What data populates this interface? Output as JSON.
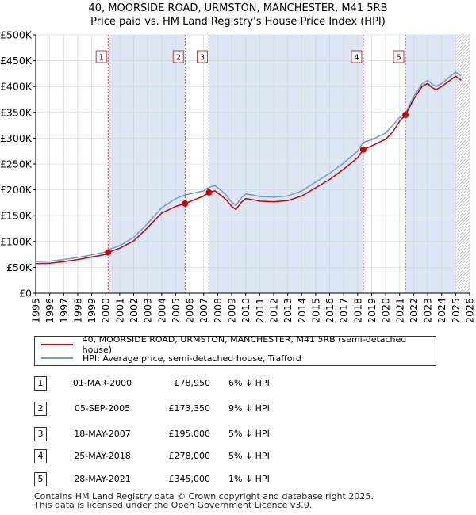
{
  "title": [
    "40, MOORSIDE ROAD, URMSTON, MANCHESTER, M41 5RB",
    "Price paid vs. HM Land Registry's House Price Index (HPI)"
  ],
  "colors": {
    "property": "#cc0000",
    "hpi": "#6b9cd6",
    "shade": "#dde6f5",
    "vline": "#dd4444",
    "grid": "#d8d8d8"
  },
  "legend": {
    "property_label": "40, MOORSIDE ROAD, URMSTON, MANCHESTER, M41 5RB (semi-detached house)",
    "hpi_label": "HPI: Average price, semi-detached house, Trafford"
  },
  "transactions": [
    {
      "num": "1",
      "date": "01-MAR-2000",
      "price": "£78,950",
      "hpi": "6% ↓ HPI"
    },
    {
      "num": "2",
      "date": "05-SEP-2005",
      "price": "£173,350",
      "hpi": "9% ↓ HPI"
    },
    {
      "num": "3",
      "date": "18-MAY-2007",
      "price": "£195,000",
      "hpi": "5% ↓ HPI"
    },
    {
      "num": "4",
      "date": "25-MAY-2018",
      "price": "£278,000",
      "hpi": "5% ↓ HPI"
    },
    {
      "num": "5",
      "date": "28-MAY-2021",
      "price": "£345,000",
      "hpi": "1% ↓ HPI"
    }
  ],
  "footer": [
    "Contains HM Land Registry data © Crown copyright and database right 2025.",
    "This data is licensed under the Open Government Licence v3.0."
  ],
  "chart_data": {
    "type": "line",
    "title": "Price paid vs. HM Land Registry's House Price Index (HPI)",
    "xlabel": "",
    "ylabel": "",
    "xlim": [
      1995,
      2026
    ],
    "ylim": [
      0,
      500000
    ],
    "x_ticks": [
      "1995",
      "1996",
      "1997",
      "1998",
      "1999",
      "2000",
      "2001",
      "2002",
      "2003",
      "2004",
      "2005",
      "2006",
      "2007",
      "2008",
      "2009",
      "2010",
      "2011",
      "2012",
      "2013",
      "2014",
      "2015",
      "2016",
      "2017",
      "2018",
      "2019",
      "2020",
      "2021",
      "2022",
      "2023",
      "2024",
      "2025",
      "2026"
    ],
    "y_ticks": [
      {
        "value": 0,
        "label": "£0"
      },
      {
        "value": 50000,
        "label": "£50K"
      },
      {
        "value": 100000,
        "label": "£100K"
      },
      {
        "value": 150000,
        "label": "£150K"
      },
      {
        "value": 200000,
        "label": "£200K"
      },
      {
        "value": 250000,
        "label": "£250K"
      },
      {
        "value": 300000,
        "label": "£300K"
      },
      {
        "value": 350000,
        "label": "£350K"
      },
      {
        "value": 400000,
        "label": "£400K"
      },
      {
        "value": 450000,
        "label": "£450K"
      },
      {
        "value": 500000,
        "label": "£500K"
      }
    ],
    "shaded_ranges": [
      [
        2000.17,
        2005.67
      ],
      [
        2007.38,
        2018.4
      ],
      [
        2021.41,
        2025.0
      ]
    ],
    "hatched_from": 2025.0,
    "sales": [
      {
        "label": "1",
        "x": 2000.17,
        "y": 78950
      },
      {
        "label": "2",
        "x": 2005.67,
        "y": 173350
      },
      {
        "label": "3",
        "x": 2007.38,
        "y": 195000
      },
      {
        "label": "4",
        "x": 2018.4,
        "y": 278000
      },
      {
        "label": "5",
        "x": 2021.41,
        "y": 345000
      }
    ],
    "series": [
      {
        "name": "HPI: Average price, semi-detached house, Trafford",
        "x": [
          1995,
          1996,
          1997,
          1998,
          1999,
          2000,
          2000.17,
          2001,
          2002,
          2003,
          2004,
          2005,
          2005.67,
          2006,
          2007,
          2007.38,
          2007.8,
          2008.2,
          2008.6,
          2009,
          2009.3,
          2009.7,
          2010,
          2010.5,
          2011,
          2012,
          2013,
          2014,
          2015,
          2016,
          2017,
          2018,
          2018.4,
          2019,
          2020,
          2020.5,
          2021,
          2021.41,
          2022,
          2022.6,
          2023,
          2023.3,
          2023.6,
          2024,
          2024.4,
          2025,
          2025.4
        ],
        "y": [
          61000,
          62000,
          65000,
          69000,
          74000,
          80000,
          84000,
          92000,
          108000,
          135000,
          165000,
          183000,
          190000,
          192000,
          198000,
          205000,
          208000,
          200000,
          190000,
          176000,
          170000,
          185000,
          192000,
          190000,
          187000,
          186000,
          188000,
          198000,
          215000,
          232000,
          252000,
          275000,
          292000,
          297000,
          310000,
          325000,
          340000,
          348000,
          380000,
          405000,
          412000,
          405000,
          400000,
          406000,
          415000,
          428000,
          420000
        ]
      },
      {
        "name": "40, MOORSIDE ROAD, URMSTON, MANCHESTER, M41 5RB (semi-detached house)",
        "x": [
          1995,
          1996,
          1997,
          1998,
          1999,
          2000,
          2000.17,
          2001,
          2002,
          2003,
          2004,
          2005,
          2005.67,
          2006,
          2007,
          2007.38,
          2007.8,
          2008.2,
          2008.6,
          2009,
          2009.3,
          2009.7,
          2010,
          2010.5,
          2011,
          2012,
          2013,
          2014,
          2015,
          2016,
          2017,
          2018,
          2018.4,
          2019,
          2020,
          2020.5,
          2021,
          2021.41,
          2022,
          2022.6,
          2023,
          2023.3,
          2023.6,
          2024,
          2024.4,
          2025,
          2025.4
        ],
        "y": [
          57000,
          58000,
          61000,
          65000,
          70000,
          75000,
          78950,
          87000,
          101000,
          127000,
          155000,
          168000,
          173350,
          177000,
          188000,
          195000,
          198000,
          190000,
          181000,
          168000,
          162000,
          176000,
          183000,
          181000,
          178000,
          177000,
          179000,
          188000,
          204000,
          220000,
          240000,
          262000,
          278000,
          285000,
          298000,
          312000,
          333000,
          345000,
          375000,
          400000,
          406000,
          398000,
          394000,
          400000,
          408000,
          420000,
          412000
        ]
      }
    ]
  }
}
